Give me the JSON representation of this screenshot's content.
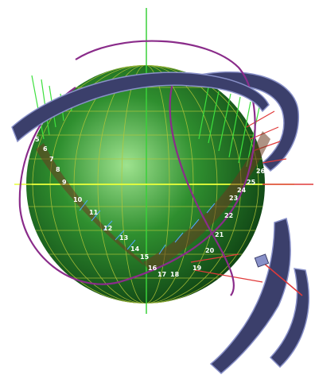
{
  "colors": {
    "background": "#ffffff",
    "sphere_light": "#9fe38f",
    "sphere_mid": "#2f8f2f",
    "sphere_dark": "#0d3d12",
    "grid": "#b7c83a",
    "axis": "#e8ff3a",
    "vertical_axis": "#3ad13a",
    "ribbon_face": "#3b3f6b",
    "ribbon_edge": "#8890c8",
    "curve_purple": "#8a2c8a",
    "curve_red": "#c0392b",
    "spike_green": "#3ee03e",
    "spike_blue": "#4ea8ff",
    "label_text": "#ffffff"
  },
  "labels": [
    "5",
    "6",
    "7",
    "8",
    "9",
    "10",
    "11",
    "12",
    "13",
    "14",
    "15",
    "16",
    "17",
    "18",
    "19",
    "20",
    "21",
    "22",
    "23",
    "24",
    "25",
    "26"
  ]
}
